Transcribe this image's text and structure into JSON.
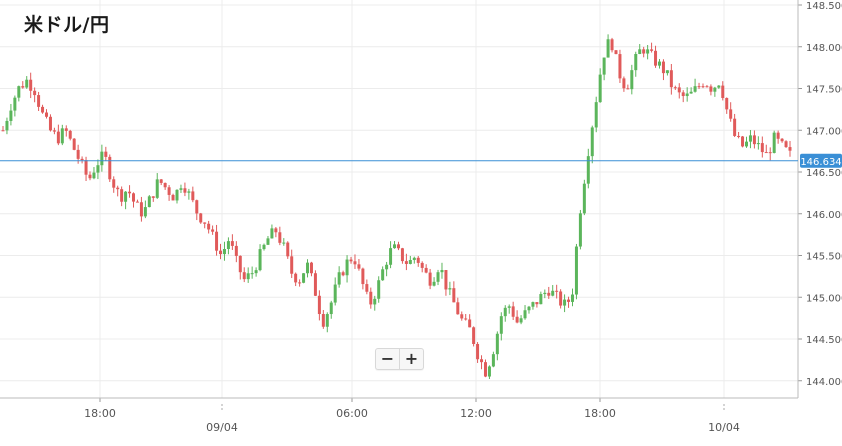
{
  "title": "米ドル/円",
  "zoom": {
    "minus_label": "−",
    "plus_label": "+"
  },
  "colors": {
    "up": "#5bb55b",
    "down": "#e05a5a",
    "current_line": "#3a8fd6",
    "badge": "#3a8fd6",
    "grid": "#ececec"
  },
  "chart_data": {
    "type": "candlestick",
    "title": "米ドル/円",
    "ylim": [
      143.8,
      148.5
    ],
    "y_ticks": [
      "148.500",
      "148.000",
      "147.500",
      "147.000",
      "146.500",
      "146.000",
      "145.500",
      "145.000",
      "144.500",
      "144.000"
    ],
    "y_tick_values": [
      148.5,
      148.0,
      147.5,
      147.0,
      146.5,
      146.0,
      145.5,
      145.0,
      144.5,
      144.0
    ],
    "x_ticks": [
      "18:00",
      "09/04",
      "06:00",
      "12:00",
      "18:00",
      "10/04"
    ],
    "current_price": 146.634,
    "current_price_label": "146.634",
    "grid": true,
    "legend": "none",
    "close_path": [
      147.0,
      147.3,
      147.5,
      147.6,
      147.5,
      147.2,
      147.0,
      146.9,
      147.0,
      146.8,
      146.6,
      146.4,
      146.6,
      146.7,
      146.4,
      146.2,
      146.3,
      146.1,
      146.0,
      146.2,
      146.4,
      146.3,
      146.2,
      146.4,
      146.2,
      146.0,
      145.9,
      145.7,
      145.5,
      145.7,
      145.4,
      145.2,
      145.3,
      145.5,
      145.7,
      145.8,
      145.6,
      145.3,
      145.2,
      145.4,
      145.1,
      144.7,
      144.9,
      145.2,
      145.4,
      145.5,
      145.2,
      144.9,
      145.1,
      145.4,
      145.6,
      145.5,
      145.4,
      145.5,
      145.3,
      145.2,
      145.4,
      145.1,
      144.9,
      144.7,
      144.6,
      144.3,
      144.1,
      144.4,
      144.8,
      144.9,
      144.7,
      144.8,
      144.9,
      145.0,
      145.1,
      145.0,
      144.9,
      145.0,
      146.0,
      146.7,
      147.3,
      147.9,
      148.1,
      147.7,
      147.5,
      147.8,
      148.0,
      147.9,
      147.8,
      147.7,
      147.5,
      147.4,
      147.4,
      147.5,
      147.6,
      147.5,
      147.6,
      147.2,
      146.9,
      146.8,
      146.9,
      146.8,
      146.7,
      146.9,
      146.8,
      146.7
    ]
  }
}
